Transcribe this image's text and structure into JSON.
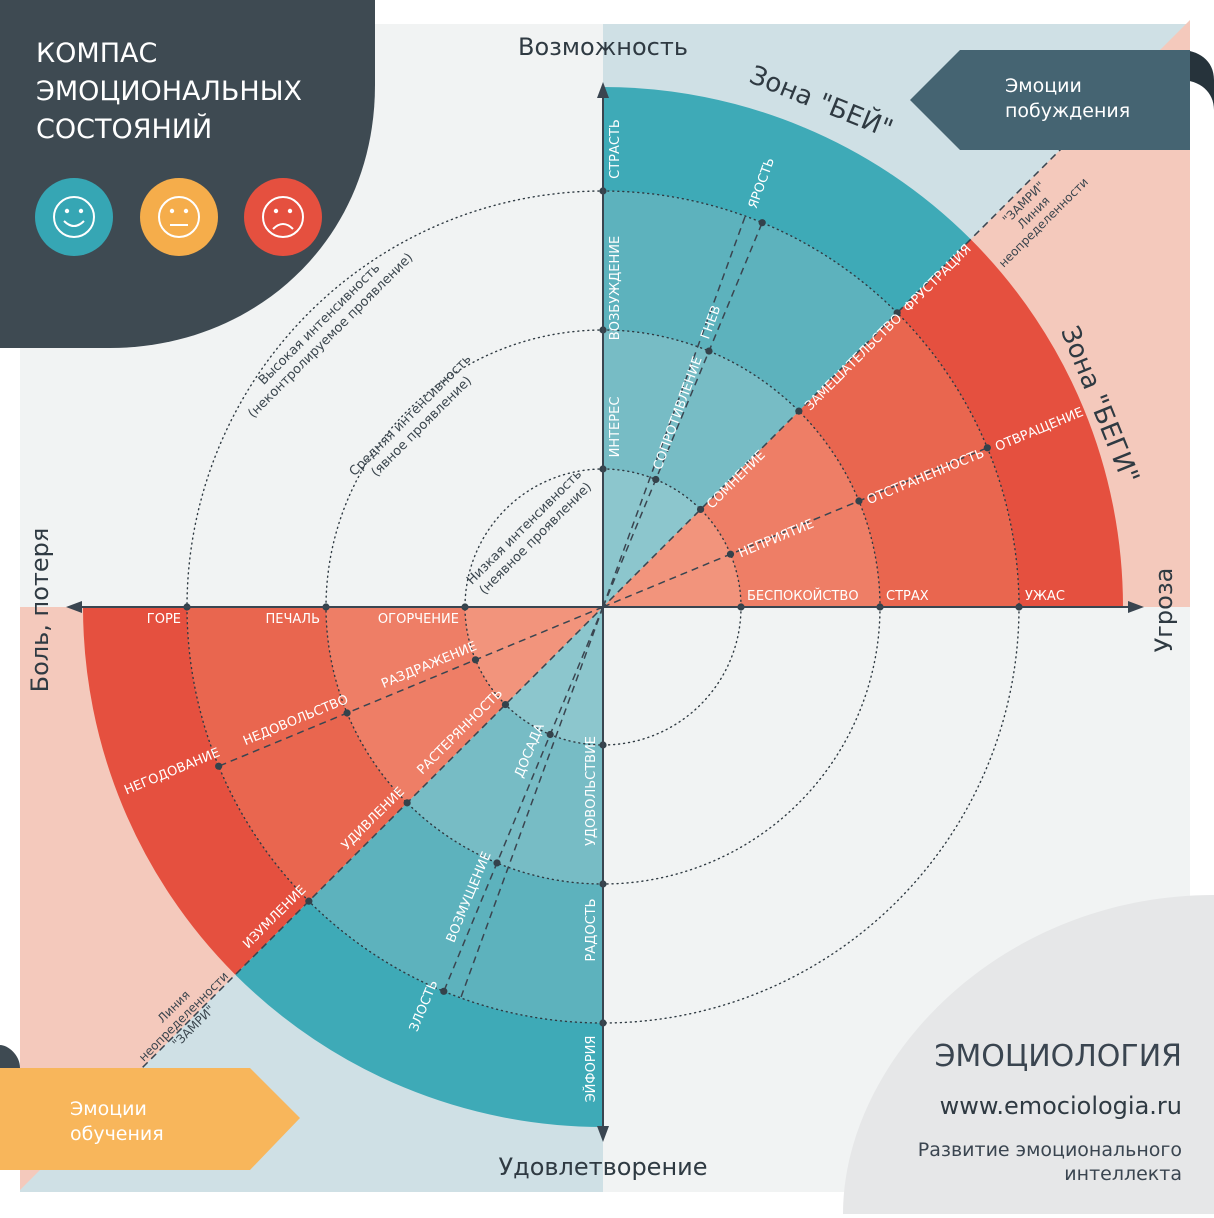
{
  "title_lines": [
    "КОМПАС",
    "ЭМОЦИОНАЛЬНЫХ",
    "СОСТОЯНИЙ"
  ],
  "faces": [
    {
      "icon": "smile-face-icon",
      "color": "#36a6b4"
    },
    {
      "icon": "neutral-face-icon",
      "color": "#f5ad4b"
    },
    {
      "icon": "sad-face-icon",
      "color": "#e5503f"
    }
  ],
  "axes": {
    "top": "Возможность",
    "bottom": "Удовлетворение",
    "left": "Боль, потеря",
    "right": "Угроза"
  },
  "zones": {
    "hit": "Зона \"БЕЙ\"",
    "run": "Зона \"БЕГИ\""
  },
  "intensity": {
    "low": [
      "Низкая интенсивность",
      "(неявное проявление)"
    ],
    "mid": [
      "Средняя интенсивность",
      "(явное проявление)"
    ],
    "high": [
      "Высокая интенсивность",
      "(неконтролируемое проявление)"
    ]
  },
  "uncertainty": [
    "\"ЗАМРИ\"",
    "Линия",
    "неопределенности"
  ],
  "tags": {
    "motivation": [
      "Эмоции",
      "побуждения"
    ],
    "learning": [
      "Эмоции",
      "обучения"
    ]
  },
  "emotions": {
    "q1_axis": [
      "ИНТЕРЕС",
      "ВОЗБУЖДЕНИЕ",
      "СТРАСТЬ"
    ],
    "q1_dash": [
      "СОПРОТИВЛЕНИЕ",
      "ГНЕВ",
      "ЯРОСТЬ"
    ],
    "q1_diag": [
      "СОМНЕНИЕ",
      "ЗАМЕШАТЕЛЬСТВО",
      "ФРУСТРАЦИЯ"
    ],
    "q1_red_dash": [
      "НЕПРИЯТИЕ",
      "ОТСТРАНЕННОСТЬ",
      "ОТВРАЩЕНИЕ"
    ],
    "right_axis": [
      "БЕСПОКОЙСТВО",
      "СТРАХ",
      "УЖАС"
    ],
    "left_axis": [
      "ОГОРЧЕНИЕ",
      "ПЕЧАЛЬ",
      "ГОРЕ"
    ],
    "q3_red_dash": [
      "РАЗДРАЖЕНИЕ",
      "НЕДОВОЛЬСТВО",
      "НЕГОДОВАНИЕ"
    ],
    "q3_diag": [
      "РАСТЕРЯННОСТЬ",
      "УДИВЛЕНИЕ",
      "ИЗУМЛЕНИЕ"
    ],
    "q3_dash": [
      "ДОСАДА",
      "ВОЗМУЩЕНИЕ",
      "ЗЛОСТЬ"
    ],
    "bottom_axis": [
      "УДОВОЛЬСТВИЕ",
      "РАДОСТЬ",
      "ЭЙФОРИЯ"
    ]
  },
  "brand": {
    "name": "ЭМОЦИОЛОГИЯ",
    "url": "www.emociologia.ru",
    "subtitle": [
      "Развитие эмоционального",
      "интеллекта"
    ]
  }
}
